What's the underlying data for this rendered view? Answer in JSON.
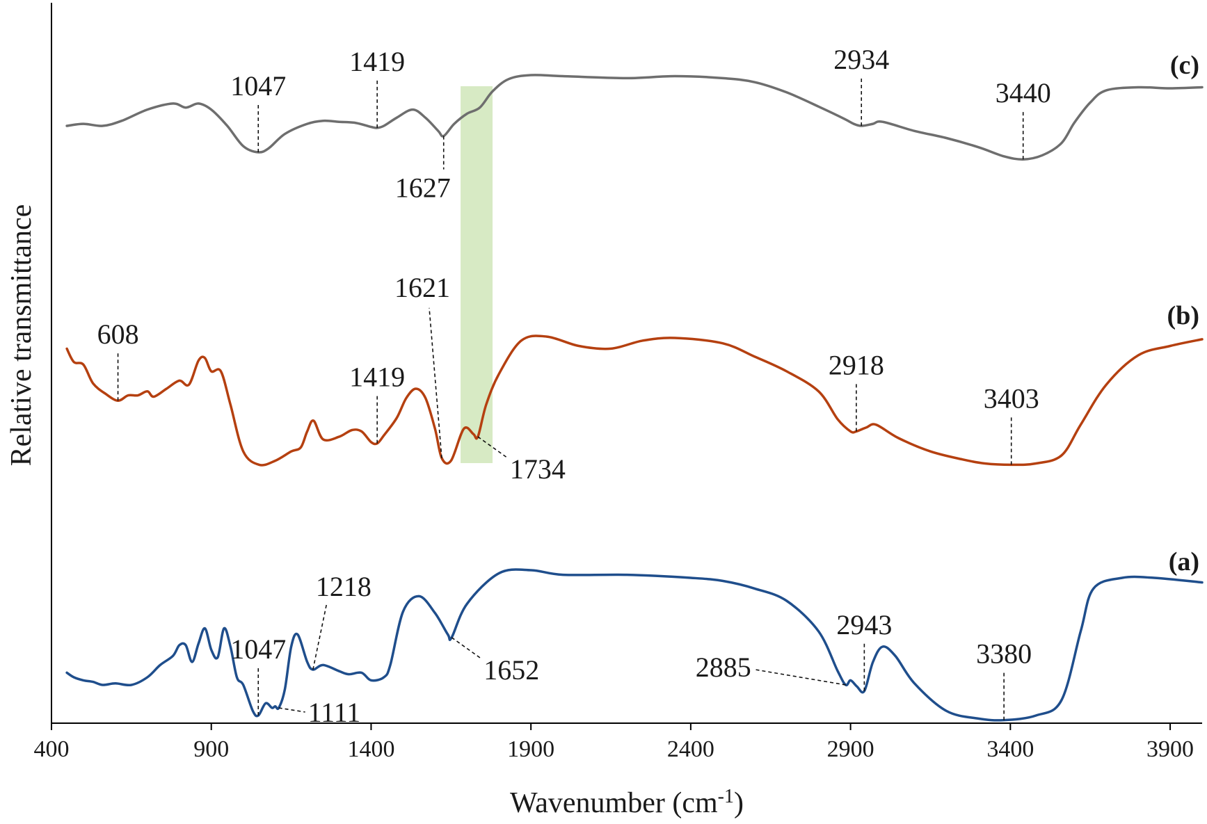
{
  "chart_data": {
    "type": "line",
    "title": "",
    "xlabel": "Wavenumber (cm-1)",
    "xlabel_base": "Wavenumber (cm",
    "xlabel_sup": "-1",
    "xlabel_close": ")",
    "ylabel": "Relative transmittance",
    "xlim": [
      400,
      4000
    ],
    "xticks": [
      400,
      900,
      1400,
      1900,
      2400,
      2900,
      3400,
      3900
    ],
    "xtick_labels": [
      "400",
      "900",
      "1400",
      "1900",
      "2400",
      "2900",
      "3400",
      "3900"
    ],
    "y_ticks_shown": false,
    "grid": false,
    "legend": "none; series tagged at right end",
    "highlight_band": {
      "x": [
        1680,
        1780
      ],
      "color": "#d7eac4"
    },
    "series": [
      {
        "name": "(c)",
        "color": "#6e6e6e",
        "points": [
          [
            448,
            0.5
          ],
          [
            500,
            0.52
          ],
          [
            560,
            0.5
          ],
          [
            620,
            0.55
          ],
          [
            700,
            0.66
          ],
          [
            780,
            0.72
          ],
          [
            820,
            0.68
          ],
          [
            860,
            0.72
          ],
          [
            900,
            0.66
          ],
          [
            950,
            0.5
          ],
          [
            1000,
            0.3
          ],
          [
            1047,
            0.24
          ],
          [
            1080,
            0.28
          ],
          [
            1130,
            0.42
          ],
          [
            1200,
            0.52
          ],
          [
            1250,
            0.55
          ],
          [
            1300,
            0.54
          ],
          [
            1350,
            0.53
          ],
          [
            1400,
            0.49
          ],
          [
            1419,
            0.48
          ],
          [
            1440,
            0.5
          ],
          [
            1480,
            0.58
          ],
          [
            1530,
            0.66
          ],
          [
            1570,
            0.58
          ],
          [
            1610,
            0.45
          ],
          [
            1627,
            0.4
          ],
          [
            1660,
            0.52
          ],
          [
            1700,
            0.62
          ],
          [
            1740,
            0.68
          ],
          [
            1780,
            0.84
          ],
          [
            1830,
            0.96
          ],
          [
            1900,
            1.0
          ],
          [
            2000,
            0.99
          ],
          [
            2200,
            0.97
          ],
          [
            2350,
            0.99
          ],
          [
            2500,
            0.97
          ],
          [
            2600,
            0.93
          ],
          [
            2700,
            0.83
          ],
          [
            2800,
            0.69
          ],
          [
            2880,
            0.57
          ],
          [
            2910,
            0.52
          ],
          [
            2934,
            0.5
          ],
          [
            2970,
            0.52
          ],
          [
            3000,
            0.54
          ],
          [
            3100,
            0.45
          ],
          [
            3200,
            0.38
          ],
          [
            3300,
            0.29
          ],
          [
            3380,
            0.2
          ],
          [
            3440,
            0.17
          ],
          [
            3500,
            0.21
          ],
          [
            3560,
            0.33
          ],
          [
            3600,
            0.53
          ],
          [
            3650,
            0.73
          ],
          [
            3700,
            0.85
          ],
          [
            3800,
            0.88
          ],
          [
            3900,
            0.87
          ],
          [
            4000,
            0.88
          ]
        ]
      },
      {
        "name": "(b)",
        "color": "#b54010",
        "points": [
          [
            448,
            0.92
          ],
          [
            470,
            0.82
          ],
          [
            500,
            0.8
          ],
          [
            530,
            0.66
          ],
          [
            570,
            0.58
          ],
          [
            608,
            0.53
          ],
          [
            640,
            0.57
          ],
          [
            670,
            0.57
          ],
          [
            700,
            0.6
          ],
          [
            720,
            0.56
          ],
          [
            760,
            0.62
          ],
          [
            800,
            0.68
          ],
          [
            830,
            0.65
          ],
          [
            860,
            0.83
          ],
          [
            880,
            0.85
          ],
          [
            900,
            0.75
          ],
          [
            930,
            0.75
          ],
          [
            960,
            0.5
          ],
          [
            1000,
            0.15
          ],
          [
            1050,
            0.05
          ],
          [
            1100,
            0.08
          ],
          [
            1150,
            0.15
          ],
          [
            1180,
            0.18
          ],
          [
            1200,
            0.3
          ],
          [
            1220,
            0.38
          ],
          [
            1250,
            0.24
          ],
          [
            1300,
            0.26
          ],
          [
            1340,
            0.31
          ],
          [
            1370,
            0.3
          ],
          [
            1400,
            0.22
          ],
          [
            1419,
            0.21
          ],
          [
            1440,
            0.27
          ],
          [
            1480,
            0.4
          ],
          [
            1510,
            0.55
          ],
          [
            1540,
            0.62
          ],
          [
            1570,
            0.55
          ],
          [
            1600,
            0.32
          ],
          [
            1621,
            0.1
          ],
          [
            1650,
            0.08
          ],
          [
            1690,
            0.32
          ],
          [
            1720,
            0.28
          ],
          [
            1734,
            0.26
          ],
          [
            1760,
            0.5
          ],
          [
            1800,
            0.73
          ],
          [
            1870,
            0.98
          ],
          [
            1950,
            1.01
          ],
          [
            2050,
            0.94
          ],
          [
            2150,
            0.92
          ],
          [
            2250,
            0.98
          ],
          [
            2350,
            1.0
          ],
          [
            2500,
            0.96
          ],
          [
            2600,
            0.86
          ],
          [
            2700,
            0.75
          ],
          [
            2800,
            0.6
          ],
          [
            2860,
            0.39
          ],
          [
            2900,
            0.3
          ],
          [
            2918,
            0.3
          ],
          [
            2950,
            0.33
          ],
          [
            2980,
            0.35
          ],
          [
            3050,
            0.25
          ],
          [
            3150,
            0.15
          ],
          [
            3250,
            0.09
          ],
          [
            3320,
            0.06
          ],
          [
            3403,
            0.05
          ],
          [
            3480,
            0.06
          ],
          [
            3560,
            0.12
          ],
          [
            3620,
            0.35
          ],
          [
            3700,
            0.65
          ],
          [
            3800,
            0.87
          ],
          [
            3900,
            0.94
          ],
          [
            4000,
            0.99
          ]
        ]
      },
      {
        "name": "(a)",
        "color": "#1f4e8c",
        "points": [
          [
            448,
            0.33
          ],
          [
            470,
            0.3
          ],
          [
            500,
            0.28
          ],
          [
            530,
            0.27
          ],
          [
            560,
            0.25
          ],
          [
            600,
            0.26
          ],
          [
            650,
            0.25
          ],
          [
            700,
            0.3
          ],
          [
            740,
            0.38
          ],
          [
            780,
            0.44
          ],
          [
            800,
            0.51
          ],
          [
            820,
            0.51
          ],
          [
            840,
            0.4
          ],
          [
            860,
            0.52
          ],
          [
            880,
            0.62
          ],
          [
            900,
            0.48
          ],
          [
            920,
            0.43
          ],
          [
            940,
            0.62
          ],
          [
            960,
            0.5
          ],
          [
            980,
            0.3
          ],
          [
            1000,
            0.25
          ],
          [
            1030,
            0.08
          ],
          [
            1047,
            0.05
          ],
          [
            1070,
            0.13
          ],
          [
            1090,
            0.1
          ],
          [
            1100,
            0.11
          ],
          [
            1111,
            0.1
          ],
          [
            1130,
            0.22
          ],
          [
            1150,
            0.5
          ],
          [
            1170,
            0.58
          ],
          [
            1200,
            0.4
          ],
          [
            1218,
            0.35
          ],
          [
            1250,
            0.38
          ],
          [
            1300,
            0.34
          ],
          [
            1330,
            0.32
          ],
          [
            1370,
            0.33
          ],
          [
            1400,
            0.28
          ],
          [
            1440,
            0.3
          ],
          [
            1460,
            0.38
          ],
          [
            1500,
            0.73
          ],
          [
            1550,
            0.83
          ],
          [
            1600,
            0.72
          ],
          [
            1640,
            0.58
          ],
          [
            1652,
            0.56
          ],
          [
            1700,
            0.78
          ],
          [
            1800,
            0.98
          ],
          [
            1900,
            1.0
          ],
          [
            2000,
            0.97
          ],
          [
            2200,
            0.97
          ],
          [
            2400,
            0.95
          ],
          [
            2500,
            0.93
          ],
          [
            2600,
            0.88
          ],
          [
            2700,
            0.8
          ],
          [
            2800,
            0.6
          ],
          [
            2860,
            0.34
          ],
          [
            2885,
            0.25
          ],
          [
            2900,
            0.28
          ],
          [
            2920,
            0.24
          ],
          [
            2943,
            0.21
          ],
          [
            2970,
            0.4
          ],
          [
            3000,
            0.5
          ],
          [
            3040,
            0.44
          ],
          [
            3100,
            0.26
          ],
          [
            3200,
            0.08
          ],
          [
            3300,
            0.03
          ],
          [
            3380,
            0.02
          ],
          [
            3480,
            0.05
          ],
          [
            3560,
            0.15
          ],
          [
            3620,
            0.6
          ],
          [
            3660,
            0.88
          ],
          [
            3750,
            0.95
          ],
          [
            3850,
            0.95
          ],
          [
            4000,
            0.92
          ]
        ]
      }
    ],
    "annotations": [
      {
        "series": "(c)",
        "label": "1047",
        "x": 1047,
        "side": "above"
      },
      {
        "series": "(c)",
        "label": "1419",
        "x": 1419,
        "side": "above"
      },
      {
        "series": "(c)",
        "label": "1627",
        "x": 1627,
        "side": "below"
      },
      {
        "series": "(c)",
        "label": "2934",
        "x": 2934,
        "side": "above"
      },
      {
        "series": "(c)",
        "label": "3440",
        "x": 3440,
        "side": "above"
      },
      {
        "series": "(b)",
        "label": "608",
        "x": 608,
        "side": "above"
      },
      {
        "series": "(b)",
        "label": "1419",
        "x": 1419,
        "side": "above"
      },
      {
        "series": "(b)",
        "label": "1621",
        "x": 1621,
        "side": "above-left"
      },
      {
        "series": "(b)",
        "label": "1734",
        "x": 1734,
        "side": "below-right"
      },
      {
        "series": "(b)",
        "label": "2918",
        "x": 2918,
        "side": "above"
      },
      {
        "series": "(b)",
        "label": "3403",
        "x": 3403,
        "side": "above"
      },
      {
        "series": "(a)",
        "label": "1047",
        "x": 1047,
        "side": "above"
      },
      {
        "series": "(a)",
        "label": "1218",
        "x": 1218,
        "side": "above-right"
      },
      {
        "series": "(a)",
        "label": "1111",
        "x": 1111,
        "side": "right"
      },
      {
        "series": "(a)",
        "label": "1652",
        "x": 1652,
        "side": "below-right"
      },
      {
        "series": "(a)",
        "label": "2885",
        "x": 2885,
        "side": "left"
      },
      {
        "series": "(a)",
        "label": "2943",
        "x": 2943,
        "side": "above"
      },
      {
        "series": "(a)",
        "label": "3380",
        "x": 3380,
        "side": "above"
      }
    ]
  }
}
